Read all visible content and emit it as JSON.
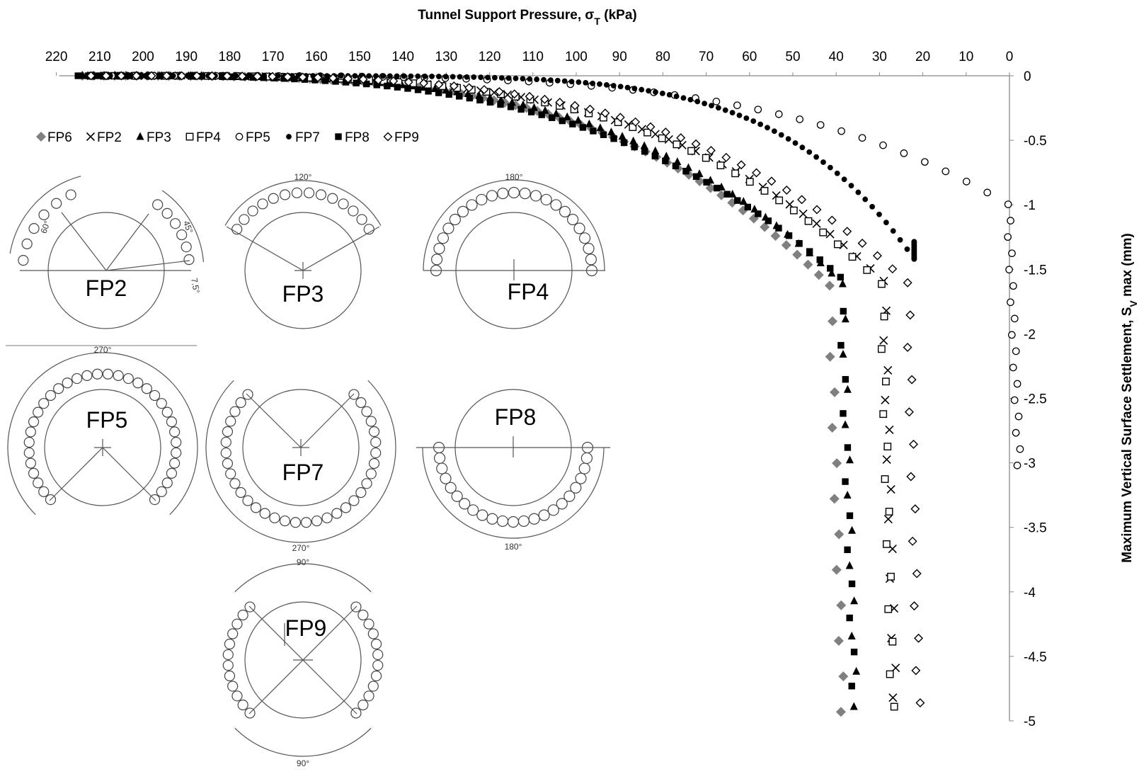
{
  "chart_data": {
    "type": "scatter",
    "title": "",
    "xlabel_main": "Tunnel Support Pressure, σ",
    "xlabel_sub": "T",
    "xlabel_unit": " (kPa)",
    "ylabel_main": "Maximum Vertical Surface Settlement, S",
    "ylabel_sub": "V",
    "ylabel_unit": " max (mm)",
    "xlim": [
      220,
      0
    ],
    "ylim": [
      0,
      -5
    ],
    "x_ticks": [
      "220",
      "210",
      "200",
      "190",
      "180",
      "170",
      "160",
      "150",
      "140",
      "130",
      "120",
      "110",
      "100",
      "90",
      "80",
      "70",
      "60",
      "50",
      "40",
      "30",
      "20",
      "10",
      "0"
    ],
    "y_ticks": [
      "0",
      "-0.5",
      "-1",
      "-1.5",
      "-2",
      "-2.5",
      "-3",
      "-3.5",
      "-4",
      "-4.5",
      "-5"
    ],
    "legend_position": "top-left",
    "series": [
      {
        "name": "FP6",
        "marker": "diamond-filled-gray",
        "x_start": 214,
        "x_end": 41.5,
        "s_start": 0.0,
        "s_end": -4.93,
        "shape_k": 3.6,
        "n_curve": 70,
        "n_tail": 12
      },
      {
        "name": "FP2",
        "marker": "cross",
        "x_start": 212,
        "x_end": 29.0,
        "s_start": 0.0,
        "s_end": -4.82,
        "shape_k": 3.7,
        "n_curve": 60,
        "n_tail": 14
      },
      {
        "name": "FP3",
        "marker": "triangle-filled",
        "x_start": 214,
        "x_end": 38.5,
        "s_start": 0.0,
        "s_end": -4.89,
        "shape_k": 3.6,
        "n_curve": 70,
        "n_tail": 12
      },
      {
        "name": "FP4",
        "marker": "square-open",
        "x_start": 212,
        "x_end": 29.5,
        "s_start": 0.0,
        "s_end": -4.89,
        "shape_k": 3.7,
        "n_curve": 55,
        "n_tail": 13
      },
      {
        "name": "FP5",
        "marker": "circle-open",
        "x_start": 212,
        "x_end": 0.3,
        "s_start": 0.0,
        "s_end": -3.02,
        "shape_k": 4.2,
        "n_curve": 45,
        "n_tail": 16
      },
      {
        "name": "FP7",
        "marker": "circle-filled",
        "x_start": 214,
        "x_end": 22.0,
        "s_start": 0.0,
        "s_end": -1.42,
        "shape_k": 6.5,
        "n_curve": 120,
        "n_tail": 18
      },
      {
        "name": "FP8",
        "marker": "square-filled",
        "x_start": 215,
        "x_end": 39.0,
        "s_start": 0.0,
        "s_end": -4.73,
        "shape_k": 3.3,
        "n_curve": 75,
        "n_tail": 12
      },
      {
        "name": "FP9",
        "marker": "diamond-open",
        "x_start": 212,
        "x_end": 23.5,
        "s_start": 0.0,
        "s_end": -4.86,
        "shape_k": 3.7,
        "n_curve": 55,
        "n_tail": 13
      }
    ]
  },
  "diagrams": [
    {
      "label": "FP2",
      "angles": [
        "60°",
        "45°",
        "7.5°"
      ]
    },
    {
      "label": "FP3",
      "angles": [
        "120°"
      ]
    },
    {
      "label": "FP4",
      "angles": [
        "180°"
      ]
    },
    {
      "label": "FP5",
      "angles": [
        "270°"
      ]
    },
    {
      "label": "FP7",
      "angles": [
        "270°"
      ]
    },
    {
      "label": "FP8",
      "angles": [
        "180°"
      ]
    },
    {
      "label": "FP9",
      "angles": [
        "90°",
        "90°"
      ]
    }
  ]
}
